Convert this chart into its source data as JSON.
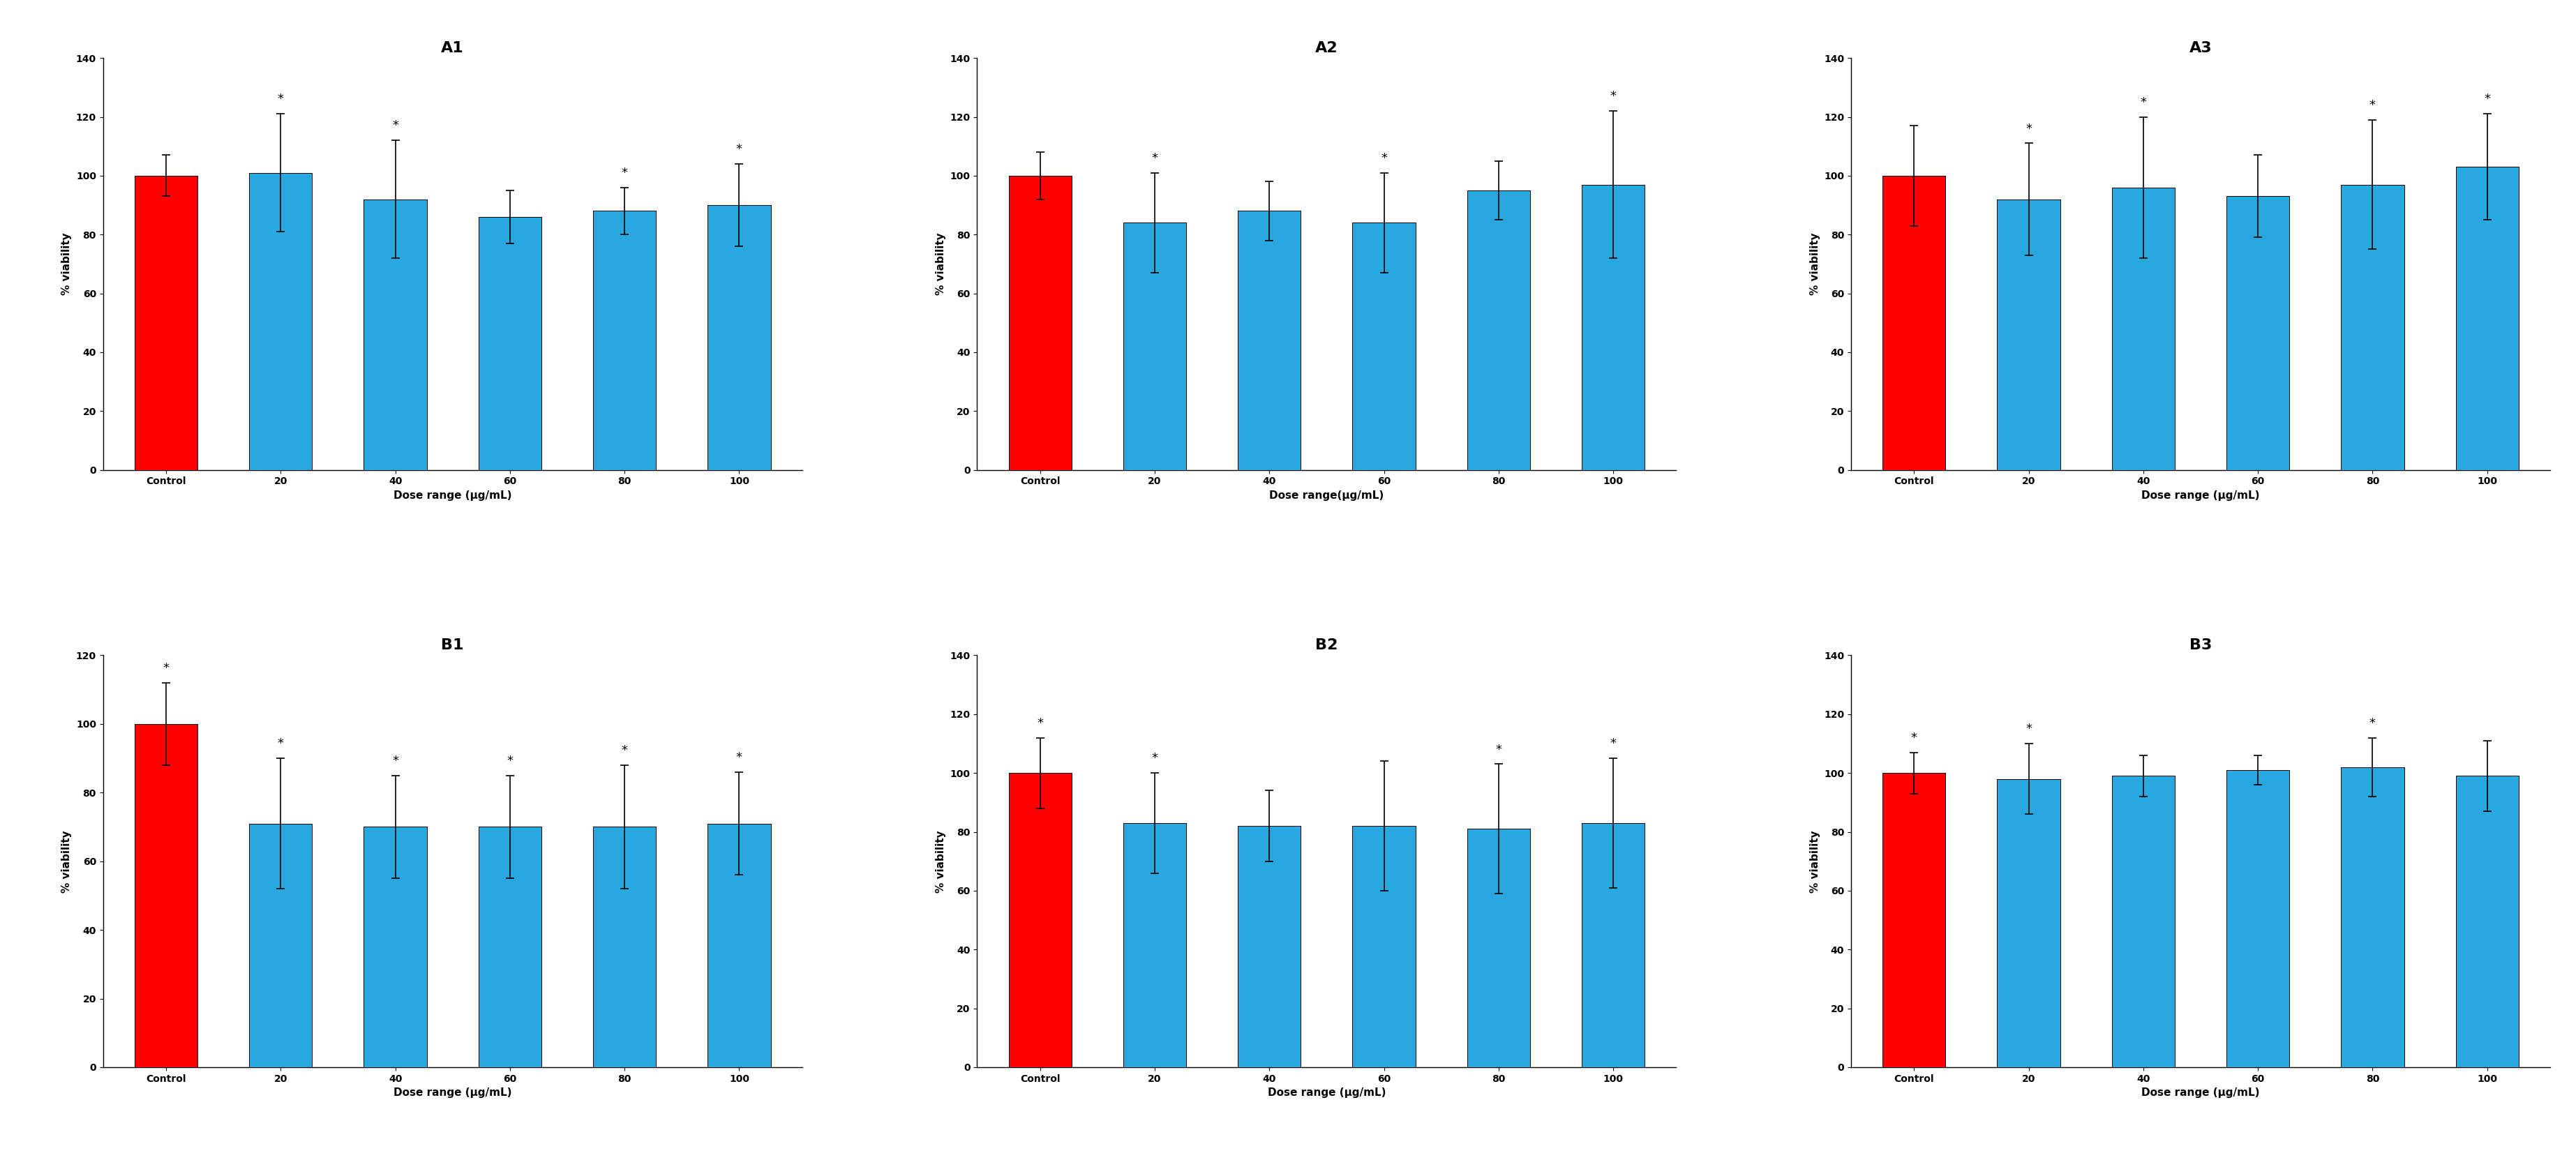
{
  "panels": [
    {
      "title": "A1",
      "categories": [
        "Control",
        "20",
        "40",
        "60",
        "80",
        "100"
      ],
      "values": [
        100,
        101,
        92,
        86,
        88,
        90
      ],
      "errors": [
        7,
        20,
        20,
        9,
        8,
        14
      ],
      "bar_colors": [
        "#ff0000",
        "#29a8e0",
        "#29a8e0",
        "#29a8e0",
        "#29a8e0",
        "#29a8e0"
      ],
      "show_star": [
        false,
        true,
        true,
        false,
        true,
        true
      ],
      "xlabel": "Dose range (μg/mL)",
      "ylabel": "% viability",
      "ylim": [
        0,
        140
      ],
      "yticks": [
        0,
        20,
        40,
        60,
        80,
        100,
        120,
        140
      ]
    },
    {
      "title": "A2",
      "categories": [
        "Control",
        "20",
        "40",
        "60",
        "80",
        "100"
      ],
      "values": [
        100,
        84,
        88,
        84,
        95,
        97
      ],
      "errors": [
        8,
        17,
        10,
        17,
        10,
        25
      ],
      "bar_colors": [
        "#ff0000",
        "#29a8e0",
        "#29a8e0",
        "#29a8e0",
        "#29a8e0",
        "#29a8e0"
      ],
      "show_star": [
        false,
        true,
        false,
        true,
        false,
        true
      ],
      "xlabel": "Dose range(μg/mL)",
      "ylabel": "% viability",
      "ylim": [
        0,
        140
      ],
      "yticks": [
        0,
        20,
        40,
        60,
        80,
        100,
        120,
        140
      ]
    },
    {
      "title": "A3",
      "categories": [
        "Control",
        "20",
        "40",
        "60",
        "80",
        "100"
      ],
      "values": [
        100,
        92,
        96,
        93,
        97,
        103
      ],
      "errors": [
        17,
        19,
        24,
        14,
        22,
        18
      ],
      "bar_colors": [
        "#ff0000",
        "#29a8e0",
        "#29a8e0",
        "#29a8e0",
        "#29a8e0",
        "#29a8e0"
      ],
      "show_star": [
        false,
        true,
        true,
        false,
        true,
        true
      ],
      "xlabel": "Dose range (μg/mL)",
      "ylabel": "% viability",
      "ylim": [
        0,
        140
      ],
      "yticks": [
        0,
        20,
        40,
        60,
        80,
        100,
        120,
        140
      ]
    },
    {
      "title": "B1",
      "categories": [
        "Control",
        "20",
        "40",
        "60",
        "80",
        "100"
      ],
      "values": [
        100,
        71,
        70,
        70,
        70,
        71
      ],
      "errors": [
        12,
        19,
        15,
        15,
        18,
        15
      ],
      "bar_colors": [
        "#ff0000",
        "#29a8e0",
        "#29a8e0",
        "#29a8e0",
        "#29a8e0",
        "#29a8e0"
      ],
      "show_star": [
        true,
        true,
        true,
        true,
        true,
        true
      ],
      "xlabel": "Dose range (μg/mL)",
      "ylabel": "% viability",
      "ylim": [
        0,
        120
      ],
      "yticks": [
        0,
        20,
        40,
        60,
        80,
        100,
        120
      ]
    },
    {
      "title": "B2",
      "categories": [
        "Control",
        "20",
        "40",
        "60",
        "80",
        "100"
      ],
      "values": [
        100,
        83,
        82,
        82,
        81,
        83
      ],
      "errors": [
        12,
        17,
        12,
        22,
        22,
        22
      ],
      "bar_colors": [
        "#ff0000",
        "#29a8e0",
        "#29a8e0",
        "#29a8e0",
        "#29a8e0",
        "#29a8e0"
      ],
      "show_star": [
        true,
        true,
        false,
        false,
        true,
        true
      ],
      "xlabel": "Dose range (μg/mL)",
      "ylabel": "% viability",
      "ylim": [
        0,
        140
      ],
      "yticks": [
        0,
        20,
        40,
        60,
        80,
        100,
        120,
        140
      ]
    },
    {
      "title": "B3",
      "categories": [
        "Control",
        "20",
        "40",
        "60",
        "80",
        "100"
      ],
      "values": [
        100,
        98,
        99,
        101,
        102,
        99
      ],
      "errors": [
        7,
        12,
        7,
        5,
        10,
        12
      ],
      "bar_colors": [
        "#ff0000",
        "#29a8e0",
        "#29a8e0",
        "#29a8e0",
        "#29a8e0",
        "#29a8e0"
      ],
      "show_star": [
        true,
        true,
        false,
        false,
        true,
        false
      ],
      "xlabel": "Dose range (μg/mL)",
      "ylabel": "% viability",
      "ylim": [
        0,
        140
      ],
      "yticks": [
        0,
        20,
        40,
        60,
        80,
        100,
        120,
        140
      ]
    }
  ],
  "bar_width": 0.55,
  "title_fontsize": 16,
  "label_fontsize": 11,
  "tick_fontsize": 10,
  "star_fontsize": 13,
  "background_color": "#ffffff",
  "error_color": "black",
  "error_capsize": 4,
  "error_linewidth": 1.2
}
